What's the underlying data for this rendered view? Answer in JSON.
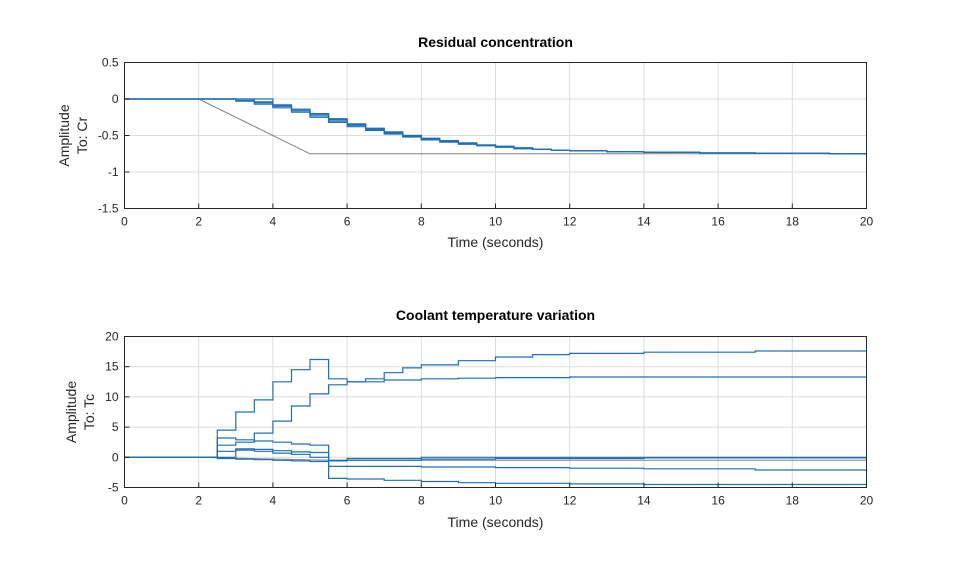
{
  "colors": {
    "series": "#1f6fb8",
    "reference": "#808080",
    "grid": "#dcdcdc",
    "axis": "#262626"
  },
  "chart_data": [
    {
      "type": "line",
      "title": "Residual concentration",
      "xlabel": "Time (seconds)",
      "ylabel": "Amplitude",
      "output_label": "To: Cr",
      "xlim": [
        0,
        20
      ],
      "ylim": [
        -1.5,
        0.5
      ],
      "xticks": [
        0,
        2,
        4,
        6,
        8,
        10,
        12,
        14,
        16,
        18,
        20
      ],
      "yticks": [
        -1.5,
        -1,
        -0.5,
        0,
        0.5
      ],
      "xtick_labels": [
        "0",
        "2",
        "4",
        "6",
        "8",
        "10",
        "12",
        "14",
        "16",
        "18",
        "20"
      ],
      "ytick_labels": [
        "-1.5",
        "-1",
        "-0.5",
        "0",
        "0.5"
      ],
      "grid": true,
      "reference": {
        "name": "reference",
        "kind": "line",
        "x": [
          0,
          2,
          5,
          20
        ],
        "y": [
          0,
          0,
          -0.75,
          -0.75
        ]
      },
      "series": [
        {
          "name": "response 1",
          "kind": "stairs",
          "x": [
            0,
            3,
            3.5,
            4,
            4.5,
            5,
            5.5,
            6,
            6.5,
            7,
            7.5,
            8,
            8.5,
            9,
            9.5,
            10,
            10.5,
            11,
            11.5,
            12,
            13,
            14,
            15.5,
            17,
            19,
            20
          ],
          "y": [
            0,
            -0.03,
            -0.07,
            -0.12,
            -0.18,
            -0.25,
            -0.32,
            -0.38,
            -0.43,
            -0.48,
            -0.52,
            -0.56,
            -0.59,
            -0.62,
            -0.64,
            -0.66,
            -0.68,
            -0.69,
            -0.7,
            -0.71,
            -0.72,
            -0.73,
            -0.74,
            -0.745,
            -0.75,
            -0.75
          ]
        },
        {
          "name": "response 2",
          "kind": "stairs",
          "x": [
            0,
            3,
            3.5,
            4,
            4.5,
            5,
            5.5,
            6,
            6.5,
            7,
            7.5,
            8,
            8.5,
            9,
            9.5,
            10,
            10.5,
            11,
            11.5,
            12,
            13,
            14,
            15.5,
            17,
            19,
            20
          ],
          "y": [
            0,
            -0.02,
            -0.05,
            -0.09,
            -0.14,
            -0.2,
            -0.27,
            -0.34,
            -0.4,
            -0.45,
            -0.5,
            -0.54,
            -0.58,
            -0.61,
            -0.63,
            -0.65,
            -0.67,
            -0.69,
            -0.7,
            -0.71,
            -0.72,
            -0.73,
            -0.74,
            -0.745,
            -0.75,
            -0.75
          ]
        },
        {
          "name": "response 3",
          "kind": "stairs",
          "x": [
            0,
            3.5,
            4,
            4.5,
            5,
            5.5,
            6,
            6.5,
            7,
            7.5,
            8,
            8.5,
            9,
            9.5,
            10,
            10.5,
            11,
            11.5,
            12,
            13,
            14,
            15.5,
            17,
            19,
            20
          ],
          "y": [
            0,
            -0.04,
            -0.1,
            -0.16,
            -0.23,
            -0.3,
            -0.36,
            -0.42,
            -0.47,
            -0.51,
            -0.55,
            -0.58,
            -0.61,
            -0.64,
            -0.66,
            -0.68,
            -0.69,
            -0.7,
            -0.71,
            -0.72,
            -0.73,
            -0.74,
            -0.745,
            -0.75,
            -0.75
          ]
        },
        {
          "name": "response 4",
          "kind": "stairs",
          "x": [
            0,
            4,
            4.5,
            5,
            5.5,
            6,
            6.5,
            7,
            7.5,
            8,
            8.5,
            9,
            9.5,
            10,
            10.5,
            11,
            11.5,
            12,
            13,
            14,
            15.5,
            17,
            19,
            20
          ],
          "y": [
            0,
            -0.08,
            -0.14,
            -0.21,
            -0.28,
            -0.35,
            -0.41,
            -0.46,
            -0.5,
            -0.54,
            -0.57,
            -0.6,
            -0.63,
            -0.65,
            -0.67,
            -0.69,
            -0.7,
            -0.71,
            -0.72,
            -0.73,
            -0.74,
            -0.745,
            -0.75,
            -0.75
          ]
        }
      ]
    },
    {
      "type": "line",
      "title": "Coolant temperature variation",
      "xlabel": "Time (seconds)",
      "ylabel": "Amplitude",
      "output_label": "To: Tc",
      "xlim": [
        0,
        20
      ],
      "ylim": [
        -5,
        20
      ],
      "xticks": [
        0,
        2,
        4,
        6,
        8,
        10,
        12,
        14,
        16,
        18,
        20
      ],
      "yticks": [
        -5,
        0,
        5,
        10,
        15,
        20
      ],
      "xtick_labels": [
        "0",
        "2",
        "4",
        "6",
        "8",
        "10",
        "12",
        "14",
        "16",
        "18",
        "20"
      ],
      "ytick_labels": [
        "-5",
        "0",
        "5",
        "10",
        "15",
        "20"
      ],
      "grid": true,
      "reference": {
        "name": "reference",
        "kind": "line",
        "x": [
          0,
          2,
          5.5,
          20
        ],
        "y": [
          0,
          0,
          -0.5,
          -0.5
        ]
      },
      "series": [
        {
          "name": "response 1",
          "kind": "stairs",
          "x": [
            0,
            2.5,
            3,
            3.5,
            4,
            4.5,
            5,
            5.5,
            6,
            6.5,
            7,
            7.5,
            8,
            9,
            10,
            11,
            12,
            14,
            17,
            20
          ],
          "y": [
            0,
            4.5,
            7.5,
            9.5,
            12.5,
            14.5,
            16.2,
            13.0,
            12.5,
            13.0,
            14.0,
            14.8,
            15.3,
            16.0,
            16.6,
            17.0,
            17.2,
            17.4,
            17.6,
            17.6
          ]
        },
        {
          "name": "response 2",
          "kind": "stairs",
          "x": [
            0,
            2.5,
            3,
            3.5,
            4,
            4.5,
            5,
            5.5,
            6,
            7,
            8,
            9,
            10,
            12,
            14,
            17,
            20
          ],
          "y": [
            0,
            2.0,
            2.5,
            4.0,
            6.0,
            8.5,
            10.5,
            12.0,
            12.5,
            12.8,
            13.0,
            13.1,
            13.2,
            13.3,
            13.3,
            13.3,
            13.3
          ]
        },
        {
          "name": "response 3",
          "kind": "stairs",
          "x": [
            0,
            2.5,
            3,
            3.5,
            4,
            4.5,
            5,
            5.5,
            6,
            8,
            10,
            14,
            20
          ],
          "y": [
            0,
            3.2,
            2.9,
            2.7,
            2.5,
            2.2,
            2.0,
            -0.5,
            -0.2,
            0,
            0,
            0,
            0
          ]
        },
        {
          "name": "response 4",
          "kind": "stairs",
          "x": [
            0,
            2.5,
            3,
            3.5,
            4,
            4.5,
            5,
            5.5,
            6,
            8,
            10,
            14,
            20
          ],
          "y": [
            0,
            1.0,
            1.4,
            1.3,
            1.1,
            0.9,
            0.8,
            -0.6,
            -0.5,
            -0.3,
            -0.2,
            -0.1,
            -0.1
          ]
        },
        {
          "name": "response 5",
          "kind": "stairs",
          "x": [
            0,
            2.5,
            3,
            3.5,
            4,
            4.5,
            5,
            5.5,
            6,
            8,
            10,
            12,
            14,
            17,
            20
          ],
          "y": [
            0,
            -0.2,
            -0.3,
            -0.4,
            -0.5,
            -0.6,
            -0.7,
            -1.5,
            -1.5,
            -1.6,
            -1.7,
            -1.8,
            -1.9,
            -2.1,
            -2.3
          ]
        },
        {
          "name": "response 6",
          "kind": "stairs",
          "x": [
            0,
            3,
            3.5,
            4,
            4.5,
            5,
            5.5,
            6,
            7,
            8,
            9,
            10,
            12,
            14,
            17,
            20
          ],
          "y": [
            0,
            1.2,
            1.0,
            0.7,
            0.5,
            0.0,
            -3.5,
            -3.6,
            -3.8,
            -4.0,
            -4.2,
            -4.3,
            -4.4,
            -4.5,
            -4.5,
            -4.5
          ]
        }
      ]
    }
  ]
}
